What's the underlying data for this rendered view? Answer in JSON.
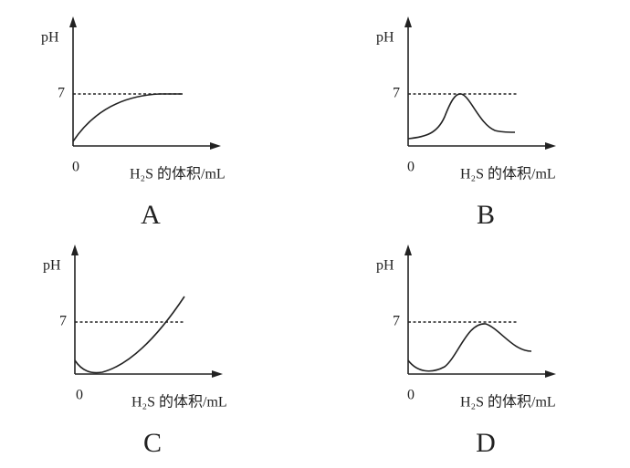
{
  "panels": [
    {
      "label": "A",
      "y_axis": "pH",
      "reference": "7",
      "origin": "0",
      "x_axis": "H₂S 的体积/mL"
    },
    {
      "label": "B",
      "y_axis": "pH",
      "reference": "7",
      "origin": "0",
      "x_axis": "H₂S 的体积/mL"
    },
    {
      "label": "C",
      "y_axis": "pH",
      "reference": "7",
      "origin": "0",
      "x_axis": "H₂S 的体积/mL"
    },
    {
      "label": "D",
      "y_axis": "pH",
      "reference": "7",
      "origin": "0",
      "x_axis": "H₂S 的体积/mL"
    }
  ]
}
